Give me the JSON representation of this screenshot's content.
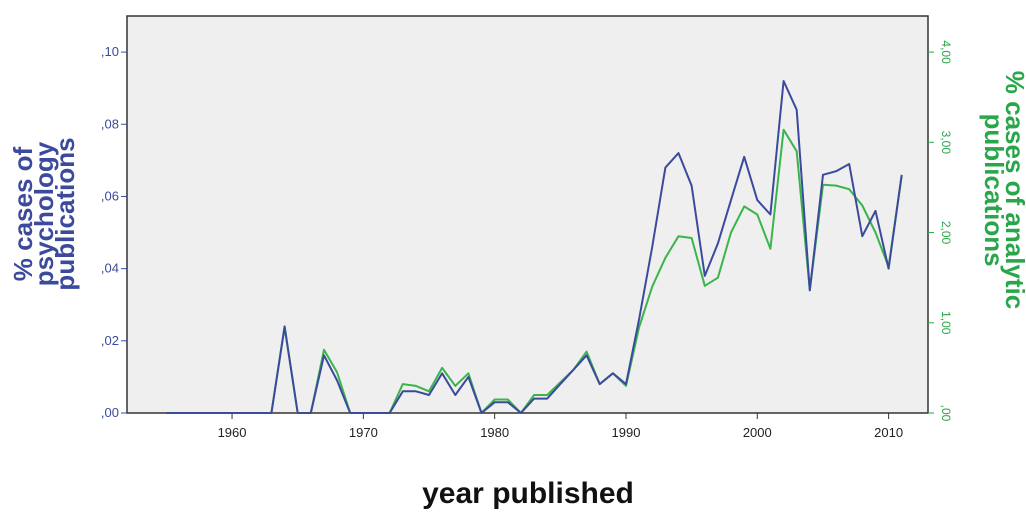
{
  "chart_data": {
    "type": "line",
    "xlabel": "year published",
    "ylabel_left": "% cases of psychology publications",
    "ylabel_right": "% cases of analytic publications",
    "xlim": [
      1952,
      2013
    ],
    "ylim_left": [
      0,
      0.11
    ],
    "ylim_right": [
      0,
      4.4
    ],
    "x_ticks": [
      1960,
      1970,
      1980,
      1990,
      2000,
      2010
    ],
    "x_tick_labels": [
      "1960",
      "1970",
      "1980",
      "1990",
      "2000",
      "2010"
    ],
    "y_left_ticks": [
      0,
      0.02,
      0.04,
      0.06,
      0.08,
      0.1
    ],
    "y_left_tick_labels": [
      ",00",
      ",02",
      ",04",
      ",06",
      ",08",
      ",10"
    ],
    "y_right_ticks": [
      0,
      1,
      2,
      3,
      4
    ],
    "y_right_tick_labels": [
      ",00",
      "1,00",
      "2,00",
      "3,00",
      "4,00"
    ],
    "grid": false,
    "colors": {
      "psychology": "#3b4a9c",
      "analytic": "#39b54a",
      "plot_background": "#efefef",
      "frame": "#333333"
    },
    "series": [
      {
        "axis": "left",
        "x": [
          1955,
          1963,
          1964,
          1965,
          1966,
          1967,
          1968,
          1969,
          1970,
          1972,
          1973,
          1974,
          1975,
          1976,
          1977,
          1978,
          1979,
          1980,
          1981,
          1982,
          1983,
          1984,
          1985,
          1986,
          1987,
          1988,
          1989,
          1990,
          1991,
          1992,
          1993,
          1994,
          1995,
          1996,
          1997,
          1998,
          1999,
          2000,
          2001,
          2002,
          2003,
          2004,
          2005,
          2006,
          2007,
          2008,
          2009,
          2010,
          2011
        ],
        "values": [
          0,
          0,
          0.024,
          0,
          0,
          0.016,
          0.009,
          0,
          0,
          0,
          0.006,
          0.006,
          0.005,
          0.011,
          0.005,
          0.01,
          0,
          0.003,
          0.003,
          0,
          0.004,
          0.004,
          0.008,
          0.012,
          0.016,
          0.008,
          0.011,
          0.008,
          0.026,
          0.046,
          0.068,
          0.072,
          0.063,
          0.038,
          0.047,
          0.059,
          0.071,
          0.059,
          0.055,
          0.092,
          0.084,
          0.034,
          0.066,
          0.067,
          0.069,
          0.049,
          0.056,
          0.04,
          0.066
        ]
      },
      {
        "axis": "right",
        "x": [
          1955,
          1963,
          1964,
          1965,
          1966,
          1967,
          1968,
          1969,
          1970,
          1972,
          1973,
          1974,
          1975,
          1976,
          1977,
          1978,
          1979,
          1980,
          1981,
          1982,
          1983,
          1984,
          1985,
          1986,
          1987,
          1988,
          1989,
          1990,
          1991,
          1992,
          1993,
          1994,
          1995,
          1996,
          1997,
          1998,
          1999,
          2000,
          2001,
          2002,
          2003,
          2004,
          2005,
          2006,
          2007,
          2008,
          2009,
          2010,
          2011
        ],
        "values": [
          0,
          0,
          0.95,
          0,
          0,
          0.7,
          0.45,
          0,
          0,
          0,
          0.32,
          0.3,
          0.24,
          0.5,
          0.3,
          0.44,
          0,
          0.15,
          0.15,
          0,
          0.2,
          0.2,
          0.34,
          0.48,
          0.68,
          0.32,
          0.44,
          0.3,
          0.95,
          1.4,
          1.72,
          1.96,
          1.94,
          1.41,
          1.5,
          2.0,
          2.29,
          2.2,
          1.82,
          3.14,
          2.9,
          1.36,
          2.53,
          2.52,
          2.48,
          2.3,
          2.0,
          1.62,
          2.63
        ]
      }
    ]
  }
}
